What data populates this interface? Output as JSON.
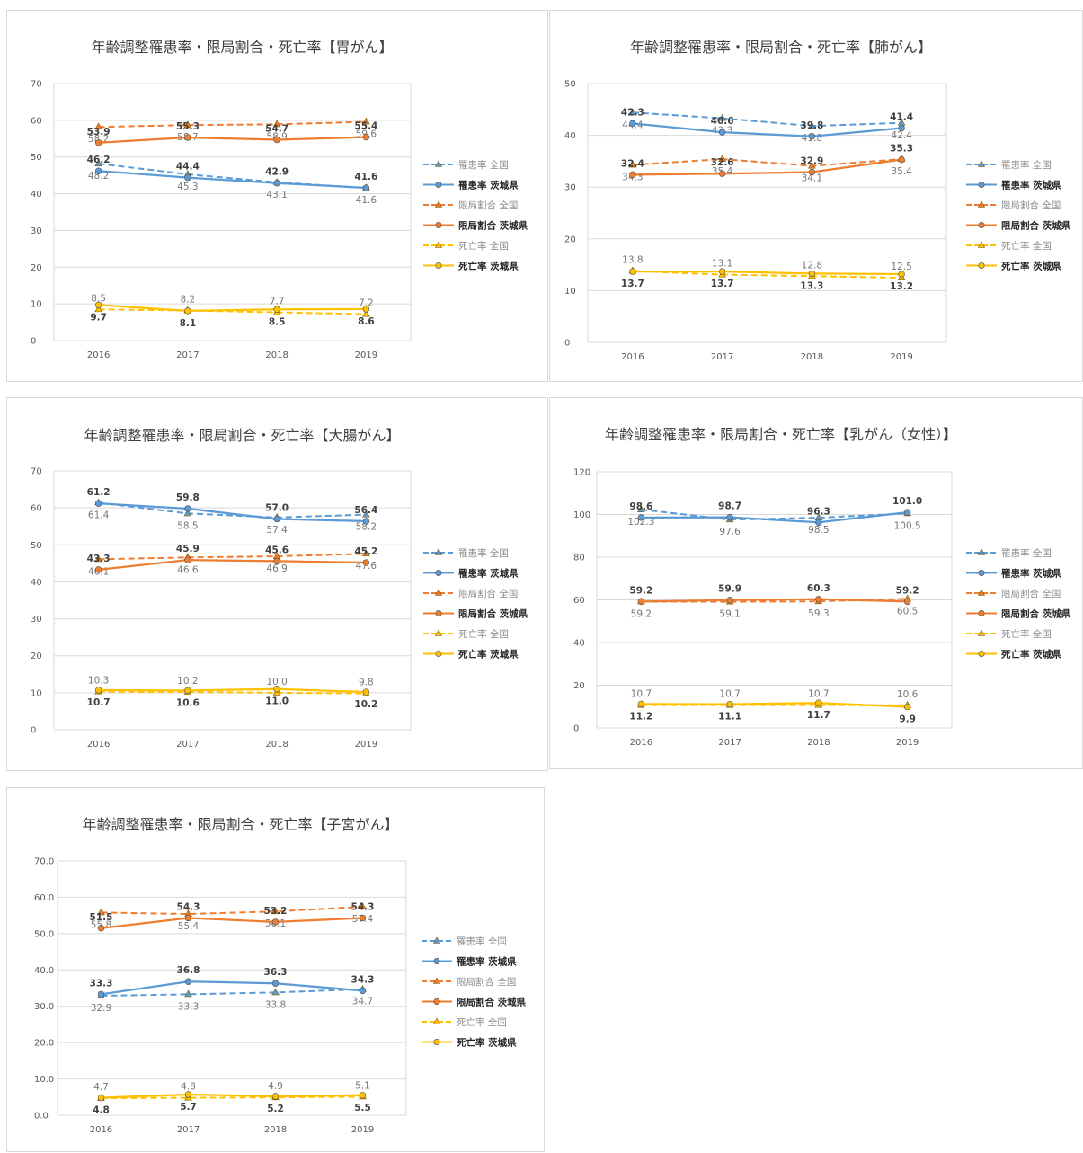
{
  "series_meta": [
    {
      "key": "inc_nat",
      "name": "罹患率 全国",
      "color": "#5b9bd5",
      "dashed": true,
      "marker": "triangle",
      "bold": false
    },
    {
      "key": "inc_ib",
      "name": "罹患率 茨城県",
      "color": "#5b9bd5",
      "dashed": false,
      "marker": "circle",
      "bold": true
    },
    {
      "key": "loc_nat",
      "name": "限局割合 全国",
      "color": "#ed7d31",
      "dashed": true,
      "marker": "triangle",
      "bold": false
    },
    {
      "key": "loc_ib",
      "name": "限局割合 茨城県",
      "color": "#ed7d31",
      "dashed": false,
      "marker": "circle",
      "bold": true
    },
    {
      "key": "mort_nat",
      "name": "死亡率 全国",
      "color": "#ffc000",
      "dashed": true,
      "marker": "triangle",
      "bold": false
    },
    {
      "key": "mort_ib",
      "name": "死亡率 茨城県",
      "color": "#ffc000",
      "dashed": false,
      "marker": "circle",
      "bold": true
    }
  ],
  "chart_data": [
    {
      "type": "line",
      "title": "年齢調整罹患率・限局割合・死亡率【胃がん】",
      "categories": [
        "2016",
        "2017",
        "2018",
        "2019"
      ],
      "ylim": [
        0,
        70
      ],
      "yticks": [
        0,
        10,
        20,
        30,
        40,
        50,
        60,
        70
      ],
      "ydecimals": 0,
      "grid": true,
      "legend": "right",
      "series": [
        {
          "name": "罹患率 全国",
          "values": [
            48.2,
            45.3,
            43.1,
            41.6
          ]
        },
        {
          "name": "罹患率 茨城県",
          "values": [
            46.2,
            44.4,
            42.9,
            41.6
          ]
        },
        {
          "name": "限局割合 全国",
          "values": [
            58.2,
            58.7,
            58.9,
            59.6
          ]
        },
        {
          "name": "限局割合 茨城県",
          "values": [
            53.9,
            55.3,
            54.7,
            55.4
          ]
        },
        {
          "name": "死亡率 全国",
          "values": [
            8.5,
            8.2,
            7.7,
            7.2
          ]
        },
        {
          "name": "死亡率 茨城県",
          "values": [
            9.7,
            8.1,
            8.5,
            8.6
          ]
        }
      ]
    },
    {
      "type": "line",
      "title": "年齢調整罹患率・限局割合・死亡率【肺がん】",
      "categories": [
        "2016",
        "2017",
        "2018",
        "2019"
      ],
      "ylim": [
        0,
        50
      ],
      "yticks": [
        0,
        10,
        20,
        30,
        40,
        50
      ],
      "ydecimals": 0,
      "grid": true,
      "legend": "right",
      "series": [
        {
          "name": "罹患率 全国",
          "values": [
            44.4,
            43.3,
            41.8,
            42.4
          ]
        },
        {
          "name": "罹患率 茨城県",
          "values": [
            42.3,
            40.6,
            39.8,
            41.4
          ]
        },
        {
          "name": "限局割合 全国",
          "values": [
            34.3,
            35.4,
            34.1,
            35.4
          ]
        },
        {
          "name": "限局割合 茨城県",
          "values": [
            32.4,
            32.6,
            32.9,
            35.3
          ]
        },
        {
          "name": "死亡率 全国",
          "values": [
            13.8,
            13.1,
            12.8,
            12.5
          ]
        },
        {
          "name": "死亡率 茨城県",
          "values": [
            13.7,
            13.7,
            13.3,
            13.2
          ]
        }
      ]
    },
    {
      "type": "line",
      "title": "年齢調整罹患率・限局割合・死亡率【大腸がん】",
      "categories": [
        "2016",
        "2017",
        "2018",
        "2019"
      ],
      "ylim": [
        0,
        70
      ],
      "yticks": [
        0,
        10,
        20,
        30,
        40,
        50,
        60,
        70
      ],
      "ydecimals": 0,
      "grid": true,
      "legend": "right",
      "series": [
        {
          "name": "罹患率 全国",
          "values": [
            61.4,
            58.5,
            57.4,
            58.2
          ]
        },
        {
          "name": "罹患率 茨城県",
          "values": [
            61.2,
            59.8,
            57.0,
            56.4
          ]
        },
        {
          "name": "限局割合 全国",
          "values": [
            46.1,
            46.6,
            46.9,
            47.6
          ]
        },
        {
          "name": "限局割合 茨城県",
          "values": [
            43.3,
            45.9,
            45.6,
            45.2
          ]
        },
        {
          "name": "死亡率 全国",
          "values": [
            10.3,
            10.2,
            10.0,
            9.8
          ]
        },
        {
          "name": "死亡率 茨城県",
          "values": [
            10.7,
            10.6,
            11.0,
            10.2
          ]
        }
      ]
    },
    {
      "type": "line",
      "title": "年齢調整罹患率・限局割合・死亡率【乳がん（女性）】",
      "categories": [
        "2016",
        "2017",
        "2018",
        "2019"
      ],
      "ylim": [
        0,
        120
      ],
      "yticks": [
        0,
        20,
        40,
        60,
        80,
        100,
        120
      ],
      "ydecimals": 0,
      "grid": true,
      "legend": "right",
      "series": [
        {
          "name": "罹患率 全国",
          "values": [
            102.3,
            97.6,
            98.5,
            100.5
          ]
        },
        {
          "name": "罹患率 茨城県",
          "values": [
            98.6,
            98.7,
            96.3,
            101.0
          ]
        },
        {
          "name": "限局割合 全国",
          "values": [
            59.2,
            59.1,
            59.3,
            60.5
          ]
        },
        {
          "name": "限局割合 茨城県",
          "values": [
            59.2,
            59.9,
            60.3,
            59.2
          ]
        },
        {
          "name": "死亡率 全国",
          "values": [
            10.7,
            10.7,
            10.7,
            10.6
          ]
        },
        {
          "name": "死亡率 茨城県",
          "values": [
            11.2,
            11.1,
            11.7,
            9.9
          ]
        }
      ]
    },
    {
      "type": "line",
      "title": "年齢調整罹患率・限局割合・死亡率【子宮がん】",
      "categories": [
        "2016",
        "2017",
        "2018",
        "2019"
      ],
      "ylim": [
        0,
        70
      ],
      "yticks": [
        0,
        10,
        20,
        30,
        40,
        50,
        60,
        70
      ],
      "ydecimals": 1,
      "grid": true,
      "legend": "right",
      "series": [
        {
          "name": "罹患率 全国",
          "values": [
            32.9,
            33.3,
            33.8,
            34.7
          ]
        },
        {
          "name": "罹患率 茨城県",
          "values": [
            33.3,
            36.8,
            36.3,
            34.3
          ]
        },
        {
          "name": "限局割合 全国",
          "values": [
            55.8,
            55.4,
            56.1,
            57.4
          ]
        },
        {
          "name": "限局割合 茨城県",
          "values": [
            51.5,
            54.3,
            53.2,
            54.3
          ]
        },
        {
          "name": "死亡率 全国",
          "values": [
            4.7,
            4.8,
            4.9,
            5.1
          ]
        },
        {
          "name": "死亡率 茨城県",
          "values": [
            4.8,
            5.7,
            5.2,
            5.5
          ]
        }
      ]
    }
  ]
}
